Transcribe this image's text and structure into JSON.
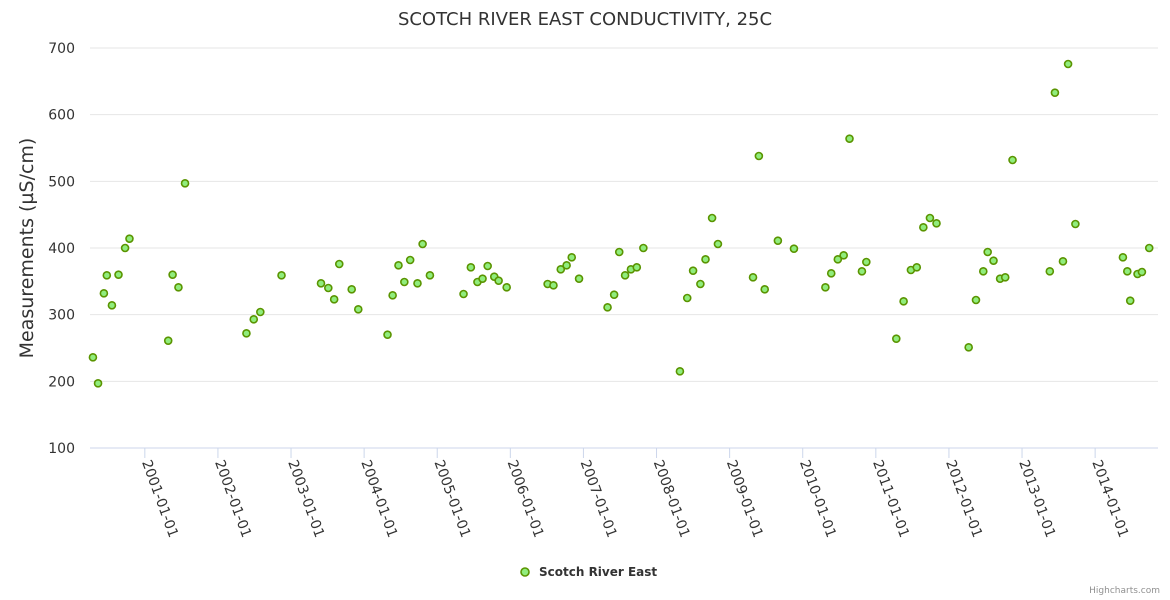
{
  "chart_data": {
    "type": "scatter",
    "title": "SCOTCH RIVER EAST CONDUCTIVITY, 25C",
    "ylabel": "Measurements (µS/cm)",
    "xlabel": "",
    "ylim": [
      100,
      700
    ],
    "yticks": [
      "100",
      "200",
      "300",
      "400",
      "500",
      "600",
      "700"
    ],
    "xlim": [
      2000.25,
      2014.86
    ],
    "xticks": [
      {
        "year": 2001,
        "label": "2001-01-01"
      },
      {
        "year": 2002,
        "label": "2002-01-01"
      },
      {
        "year": 2003,
        "label": "2003-01-01"
      },
      {
        "year": 2004,
        "label": "2004-01-01"
      },
      {
        "year": 2005,
        "label": "2005-01-01"
      },
      {
        "year": 2006,
        "label": "2006-01-01"
      },
      {
        "year": 2007,
        "label": "2007-01-01"
      },
      {
        "year": 2008,
        "label": "2008-01-01"
      },
      {
        "year": 2009,
        "label": "2009-01-01"
      },
      {
        "year": 2010,
        "label": "2010-01-01"
      },
      {
        "year": 2011,
        "label": "2011-01-01"
      },
      {
        "year": 2012,
        "label": "2012-01-01"
      },
      {
        "year": 2013,
        "label": "2013-01-01"
      },
      {
        "year": 2014,
        "label": "2014-01-01"
      }
    ],
    "legend_position": "bottom-center",
    "series": [
      {
        "name": "Scotch River East",
        "color": "#90ed7d",
        "stroke": "#5a9400",
        "points": [
          [
            2000.29,
            236
          ],
          [
            2000.36,
            197
          ],
          [
            2000.44,
            332
          ],
          [
            2000.48,
            359
          ],
          [
            2000.55,
            314
          ],
          [
            2000.64,
            360
          ],
          [
            2000.73,
            400
          ],
          [
            2000.79,
            414
          ],
          [
            2001.32,
            261
          ],
          [
            2001.38,
            360
          ],
          [
            2001.46,
            341
          ],
          [
            2001.55,
            497
          ],
          [
            2002.39,
            272
          ],
          [
            2002.49,
            293
          ],
          [
            2002.58,
            304
          ],
          [
            2002.87,
            359
          ],
          [
            2003.41,
            347
          ],
          [
            2003.51,
            340
          ],
          [
            2003.59,
            323
          ],
          [
            2003.66,
            376
          ],
          [
            2003.83,
            338
          ],
          [
            2003.92,
            308
          ],
          [
            2004.32,
            270
          ],
          [
            2004.39,
            329
          ],
          [
            2004.47,
            374
          ],
          [
            2004.55,
            349
          ],
          [
            2004.63,
            382
          ],
          [
            2004.73,
            347
          ],
          [
            2004.8,
            406
          ],
          [
            2004.9,
            359
          ],
          [
            2005.36,
            331
          ],
          [
            2005.46,
            371
          ],
          [
            2005.55,
            349
          ],
          [
            2005.62,
            354
          ],
          [
            2005.69,
            373
          ],
          [
            2005.78,
            357
          ],
          [
            2005.84,
            351
          ],
          [
            2005.95,
            341
          ],
          [
            2006.51,
            346
          ],
          [
            2006.59,
            344
          ],
          [
            2006.69,
            368
          ],
          [
            2006.77,
            374
          ],
          [
            2006.84,
            386
          ],
          [
            2006.94,
            354
          ],
          [
            2007.33,
            311
          ],
          [
            2007.42,
            330
          ],
          [
            2007.49,
            394
          ],
          [
            2007.57,
            359
          ],
          [
            2007.65,
            368
          ],
          [
            2007.73,
            371
          ],
          [
            2007.82,
            400
          ],
          [
            2008.32,
            215
          ],
          [
            2008.42,
            325
          ],
          [
            2008.5,
            366
          ],
          [
            2008.6,
            346
          ],
          [
            2008.67,
            383
          ],
          [
            2008.76,
            445
          ],
          [
            2008.84,
            406
          ],
          [
            2009.32,
            356
          ],
          [
            2009.4,
            538
          ],
          [
            2009.48,
            338
          ],
          [
            2009.66,
            411
          ],
          [
            2009.88,
            399
          ],
          [
            2010.31,
            341
          ],
          [
            2010.39,
            362
          ],
          [
            2010.48,
            383
          ],
          [
            2010.56,
            389
          ],
          [
            2010.64,
            564
          ],
          [
            2010.81,
            365
          ],
          [
            2010.87,
            379
          ],
          [
            2011.28,
            264
          ],
          [
            2011.38,
            320
          ],
          [
            2011.48,
            367
          ],
          [
            2011.56,
            371
          ],
          [
            2011.65,
            431
          ],
          [
            2011.74,
            445
          ],
          [
            2011.83,
            437
          ],
          [
            2012.27,
            251
          ],
          [
            2012.37,
            322
          ],
          [
            2012.47,
            365
          ],
          [
            2012.53,
            394
          ],
          [
            2012.61,
            381
          ],
          [
            2012.7,
            354
          ],
          [
            2012.77,
            356
          ],
          [
            2012.87,
            532
          ],
          [
            2013.38,
            365
          ],
          [
            2013.45,
            633
          ],
          [
            2013.56,
            380
          ],
          [
            2013.63,
            676
          ],
          [
            2013.73,
            436
          ],
          [
            2014.38,
            386
          ],
          [
            2014.44,
            365
          ],
          [
            2014.48,
            321
          ],
          [
            2014.58,
            361
          ],
          [
            2014.64,
            364
          ],
          [
            2014.74,
            400
          ]
        ]
      }
    ]
  },
  "credits": "Highcharts.com"
}
